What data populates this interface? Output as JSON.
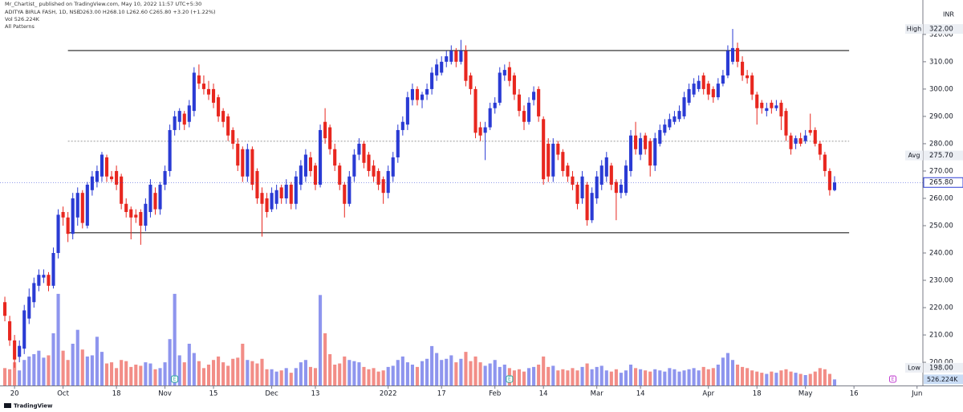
{
  "attribution": "Mr_Chartist_ published on TradingView.com, May 10, 2022 11:57 UTC+5:30",
  "footer": "TradingView",
  "chart_data": {
    "type": "candlestick",
    "title": "ADITYA BIRLA FASH, 1D, NSE",
    "ohlc_text": "O263.00 H268.10 L262.60 C265.80 +3.20 (+1.22%)",
    "volume_text": "Vol 526.224K",
    "indicator": "All Patterns",
    "currency": "INR",
    "up_color": "#2a3bd4",
    "down_color": "#e8271f",
    "volume_up_color": "#8e95ee",
    "volume_down_color": "#f28d87",
    "grid": false,
    "xlim": [
      -1,
      189.2
    ],
    "ylim": [
      191.5,
      332.6
    ],
    "vlim": [
      0,
      9000
    ],
    "xticks": [
      {
        "value": 2,
        "label": "20"
      },
      {
        "value": 12,
        "label": "Oct"
      },
      {
        "value": 23,
        "label": "18"
      },
      {
        "value": 33,
        "label": "Nov"
      },
      {
        "value": 43,
        "label": "15"
      },
      {
        "value": 55,
        "label": "Dec"
      },
      {
        "value": 64,
        "label": "13"
      },
      {
        "value": 79,
        "label": "2022"
      },
      {
        "value": 90,
        "label": "17"
      },
      {
        "value": 101,
        "label": "Feb"
      },
      {
        "value": 111,
        "label": "14"
      },
      {
        "value": 122,
        "label": "Mar"
      },
      {
        "value": 131,
        "label": "14"
      },
      {
        "value": 145,
        "label": "Apr"
      },
      {
        "value": 155,
        "label": "18"
      },
      {
        "value": 165,
        "label": "May"
      },
      {
        "value": 175,
        "label": "16"
      },
      {
        "value": 188,
        "label": "Jun"
      }
    ],
    "yticks": [
      {
        "value": 200,
        "label": "200.00"
      },
      {
        "value": 210,
        "label": "210.00"
      },
      {
        "value": 220,
        "label": "220.00"
      },
      {
        "value": 230,
        "label": "230.00"
      },
      {
        "value": 240,
        "label": "240.00"
      },
      {
        "value": 250,
        "label": "250.00"
      },
      {
        "value": 260,
        "label": "260.00"
      },
      {
        "value": 270,
        "label": "270.00"
      },
      {
        "value": 280,
        "label": "280.00"
      },
      {
        "value": 290,
        "label": "290.00"
      },
      {
        "value": 300,
        "label": "300.00"
      },
      {
        "value": 310,
        "label": "310.00"
      },
      {
        "value": 320,
        "label": "320.00"
      }
    ],
    "ohlc": [
      [
        222,
        224,
        215,
        217
      ],
      [
        215,
        217,
        206,
        208
      ],
      [
        208,
        210,
        198,
        201
      ],
      [
        202,
        208,
        200,
        206
      ],
      [
        205,
        221,
        203,
        219
      ],
      [
        216,
        227,
        214,
        224
      ],
      [
        222,
        231,
        220,
        229
      ],
      [
        228,
        234,
        226,
        232
      ],
      [
        231,
        234,
        229,
        232
      ],
      [
        232,
        233,
        226,
        228
      ],
      [
        228,
        242,
        227,
        240
      ],
      [
        240,
        256,
        238,
        254
      ],
      [
        255,
        257,
        250,
        253
      ],
      [
        253,
        255,
        244,
        247
      ],
      [
        247,
        262,
        245,
        260
      ],
      [
        253,
        264,
        250,
        262
      ],
      [
        262,
        263,
        249,
        251
      ],
      [
        250,
        266,
        249,
        265
      ],
      [
        263,
        270,
        261,
        268
      ],
      [
        266,
        272,
        264,
        270
      ],
      [
        268,
        277,
        266,
        276
      ],
      [
        275,
        276,
        266,
        268
      ],
      [
        268,
        270,
        266,
        267
      ],
      [
        270,
        272,
        263,
        265
      ],
      [
        268,
        269,
        256,
        258
      ],
      [
        258,
        260,
        253,
        255
      ],
      [
        256,
        257,
        245,
        253
      ],
      [
        254,
        256,
        251,
        253
      ],
      [
        255,
        256,
        243,
        250
      ],
      [
        250,
        260,
        248,
        258
      ],
      [
        255,
        267,
        253,
        265
      ],
      [
        262,
        264,
        254,
        256
      ],
      [
        256,
        266,
        254,
        265
      ],
      [
        265,
        272,
        263,
        270
      ],
      [
        270,
        287,
        268,
        285
      ],
      [
        285,
        292,
        283,
        290
      ],
      [
        288,
        293,
        285,
        292
      ],
      [
        291,
        292,
        285,
        287
      ],
      [
        288,
        296,
        286,
        294
      ],
      [
        292,
        308,
        290,
        306
      ],
      [
        305,
        309,
        300,
        302
      ],
      [
        302,
        305,
        298,
        300
      ],
      [
        300,
        303,
        296,
        298
      ],
      [
        300,
        302,
        293,
        295
      ],
      [
        297,
        298,
        288,
        290
      ],
      [
        292,
        293,
        286,
        288
      ],
      [
        290,
        291,
        281,
        283
      ],
      [
        285,
        286,
        278,
        280
      ],
      [
        280,
        282,
        270,
        272
      ],
      [
        278,
        279,
        266,
        268
      ],
      [
        268,
        280,
        266,
        278
      ],
      [
        278,
        279,
        263,
        265
      ],
      [
        270,
        271,
        258,
        260
      ],
      [
        262,
        264,
        246,
        258
      ],
      [
        260,
        262,
        253,
        255
      ],
      [
        256,
        264,
        255,
        262
      ],
      [
        258,
        265,
        256,
        263
      ],
      [
        264,
        265,
        258,
        260
      ],
      [
        260,
        267,
        258,
        265
      ],
      [
        265,
        266,
        256,
        258
      ],
      [
        258,
        270,
        256,
        268
      ],
      [
        265,
        274,
        263,
        272
      ],
      [
        268,
        278,
        266,
        276
      ],
      [
        275,
        277,
        268,
        270
      ],
      [
        272,
        273,
        263,
        265
      ],
      [
        265,
        287,
        264,
        285
      ],
      [
        288,
        293,
        280,
        282
      ],
      [
        286,
        287,
        276,
        278
      ],
      [
        278,
        280,
        270,
        272
      ],
      [
        272,
        273,
        263,
        265
      ],
      [
        265,
        266,
        253,
        258
      ],
      [
        258,
        270,
        257,
        268
      ],
      [
        268,
        278,
        266,
        276
      ],
      [
        276,
        282,
        274,
        280
      ],
      [
        280,
        281,
        271,
        273
      ],
      [
        276,
        277,
        268,
        270
      ],
      [
        272,
        274,
        266,
        268
      ],
      [
        270,
        271,
        263,
        265
      ],
      [
        267,
        268,
        258,
        262
      ],
      [
        262,
        272,
        260,
        270
      ],
      [
        268,
        277,
        266,
        275
      ],
      [
        275,
        287,
        273,
        285
      ],
      [
        285,
        290,
        283,
        288
      ],
      [
        287,
        299,
        285,
        297
      ],
      [
        296,
        302,
        294,
        300
      ],
      [
        300,
        301,
        294,
        296
      ],
      [
        296,
        299,
        293,
        298
      ],
      [
        298,
        302,
        296,
        300
      ],
      [
        300,
        308,
        298,
        306
      ],
      [
        305,
        311,
        303,
        309
      ],
      [
        306,
        312,
        305,
        310
      ],
      [
        310,
        314,
        308,
        312
      ],
      [
        310,
        316,
        309,
        314
      ],
      [
        314,
        315,
        308,
        310
      ],
      [
        310,
        318,
        309,
        314
      ],
      [
        314,
        316,
        301,
        303
      ],
      [
        305,
        306,
        298,
        300
      ],
      [
        300,
        301,
        282,
        284
      ],
      [
        286,
        288,
        281,
        283
      ],
      [
        284,
        288,
        274,
        286
      ],
      [
        286,
        295,
        285,
        293
      ],
      [
        293,
        297,
        291,
        295
      ],
      [
        295,
        308,
        294,
        306
      ],
      [
        305,
        309,
        303,
        307
      ],
      [
        308,
        310,
        301,
        303
      ],
      [
        305,
        306,
        296,
        298
      ],
      [
        298,
        300,
        290,
        292
      ],
      [
        292,
        294,
        285,
        288
      ],
      [
        288,
        297,
        287,
        295
      ],
      [
        296,
        301,
        294,
        299
      ],
      [
        300,
        301,
        288,
        290
      ],
      [
        289,
        290,
        265,
        267
      ],
      [
        280,
        282,
        266,
        268
      ],
      [
        268,
        282,
        266,
        280
      ],
      [
        280,
        281,
        274,
        276
      ],
      [
        277,
        278,
        268,
        270
      ],
      [
        272,
        273,
        266,
        268
      ],
      [
        268,
        270,
        263,
        265
      ],
      [
        265,
        266,
        256,
        258
      ],
      [
        260,
        270,
        258,
        268
      ],
      [
        265,
        266,
        250,
        252
      ],
      [
        252,
        264,
        251,
        262
      ],
      [
        260,
        270,
        258,
        268
      ],
      [
        265,
        274,
        263,
        272
      ],
      [
        268,
        277,
        266,
        275
      ],
      [
        272,
        273,
        263,
        265
      ],
      [
        266,
        267,
        252,
        262
      ],
      [
        262,
        267,
        260,
        265
      ],
      [
        262,
        274,
        261,
        272
      ],
      [
        270,
        285,
        268,
        283
      ],
      [
        283,
        288,
        276,
        278
      ],
      [
        276,
        284,
        274,
        282
      ],
      [
        283,
        284,
        276,
        278
      ],
      [
        281,
        282,
        268,
        272
      ],
      [
        272,
        284,
        270,
        282
      ],
      [
        280,
        287,
        279,
        285
      ],
      [
        284,
        289,
        283,
        287
      ],
      [
        286,
        291,
        285,
        289
      ],
      [
        288,
        292,
        287,
        290
      ],
      [
        289,
        294,
        288,
        292
      ],
      [
        290,
        299,
        289,
        297
      ],
      [
        295,
        302,
        294,
        300
      ],
      [
        298,
        304,
        297,
        302
      ],
      [
        300,
        305,
        299,
        303
      ],
      [
        305,
        306,
        298,
        300
      ],
      [
        302,
        303,
        296,
        298
      ],
      [
        300,
        301,
        295,
        297
      ],
      [
        297,
        304,
        296,
        302
      ],
      [
        302,
        307,
        301,
        305
      ],
      [
        305,
        316,
        304,
        314
      ],
      [
        310,
        322,
        309,
        315
      ],
      [
        315,
        317,
        308,
        310
      ],
      [
        310,
        312,
        303,
        305
      ],
      [
        305,
        307,
        302,
        304
      ],
      [
        305,
        306,
        296,
        298
      ],
      [
        298,
        299,
        287,
        293
      ],
      [
        295,
        296,
        291,
        293
      ],
      [
        292,
        295,
        290,
        293
      ],
      [
        295,
        296,
        291,
        293
      ],
      [
        293,
        296,
        292,
        294
      ],
      [
        295,
        296,
        285,
        290
      ],
      [
        292,
        293,
        281,
        283
      ],
      [
        283,
        284,
        276,
        278
      ],
      [
        280,
        283,
        278,
        282
      ],
      [
        282,
        284,
        279,
        280
      ],
      [
        281,
        285,
        280,
        283
      ],
      [
        285,
        291,
        283,
        284
      ],
      [
        285,
        286,
        279,
        280
      ],
      [
        280,
        281,
        274,
        276
      ],
      [
        276,
        277,
        268,
        270
      ],
      [
        270,
        271,
        261,
        263
      ],
      [
        263,
        268.1,
        262.6,
        265.8
      ]
    ],
    "volume": [
      1500,
      1400,
      2000,
      1300,
      2200,
      2500,
      2700,
      3000,
      2400,
      2600,
      4500,
      7900,
      3000,
      2200,
      3600,
      4800,
      3100,
      2500,
      2600,
      4200,
      2900,
      1900,
      2000,
      1500,
      2200,
      2100,
      1600,
      1800,
      1700,
      2000,
      1900,
      1400,
      1500,
      2000,
      4000,
      7900,
      2600,
      2000,
      3600,
      2800,
      2100,
      1500,
      1800,
      2200,
      2500,
      2000,
      1700,
      2300,
      2400,
      3600,
      2200,
      2100,
      1900,
      2300,
      1400,
      1400,
      1200,
      1300,
      1500,
      1100,
      1500,
      2000,
      2200,
      1600,
      1500,
      7800,
      4500,
      2700,
      1800,
      1900,
      2500,
      2200,
      2100,
      2000,
      1600,
      1400,
      1500,
      1200,
      1300,
      1600,
      1700,
      2200,
      2500,
      2000,
      1800,
      1600,
      2100,
      2300,
      3400,
      2800,
      2200,
      2300,
      2600,
      2000,
      2300,
      2900,
      2100,
      2500,
      2000,
      1700,
      1900,
      2200,
      1600,
      1800,
      1500,
      1300,
      1400,
      1200,
      1500,
      1600,
      1800,
      2500,
      1600,
      1700,
      1300,
      1400,
      1300,
      1500,
      1300,
      1600,
      1900,
      1400,
      1600,
      1700,
      1300,
      1200,
      1400,
      1100,
      1300,
      1800,
      1500,
      1400,
      1300,
      1200,
      1400,
      1300,
      1200,
      1500,
      1400,
      1200,
      1300,
      1400,
      1500,
      1300,
      1600,
      1400,
      1500,
      1800,
      2400,
      2800,
      2200,
      1800,
      1600,
      1500,
      1300,
      1200,
      1100,
      1000,
      1200,
      1100,
      1300,
      1400,
      1200,
      1100,
      1000,
      900,
      1000,
      1200,
      1500,
      1400,
      1000,
      526.224
    ],
    "hlines": [
      {
        "value": 314.1,
        "from": 13,
        "to": 174,
        "style": "solid"
      },
      {
        "value": 280.9,
        "from": 13,
        "to": 174,
        "style": "dashed"
      },
      {
        "value": 247.4,
        "from": 13,
        "to": 174,
        "style": "solid"
      }
    ],
    "price_tags": [
      {
        "name": "High",
        "value": 322,
        "label": "322.00"
      },
      {
        "name": "Avg",
        "value": 275.7,
        "label": "275.70"
      },
      {
        "value": 265.8,
        "label": "265.80"
      },
      {
        "name": "Low",
        "value": 198,
        "label": "198.00"
      }
    ],
    "volume_tag": {
      "value": 526.224,
      "label": "526.224K"
    },
    "events": [
      {
        "index": 35,
        "label": "E"
      },
      {
        "index": 104,
        "label": "E"
      },
      {
        "index": 183,
        "label": "E"
      }
    ]
  }
}
